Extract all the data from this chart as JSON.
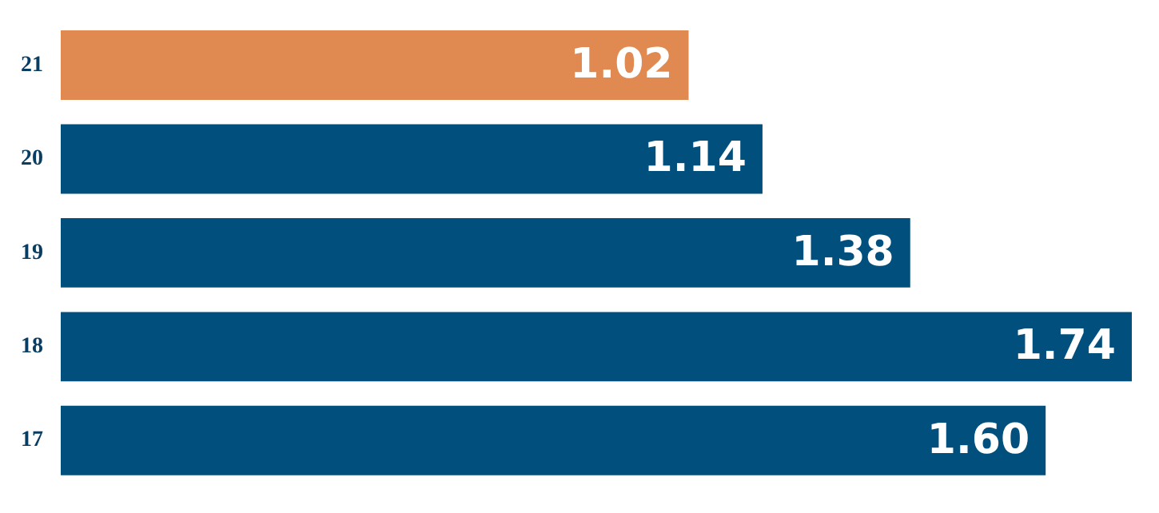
{
  "chart_data": {
    "type": "bar",
    "orientation": "horizontal",
    "categories": [
      "21",
      "20",
      "19",
      "18",
      "17"
    ],
    "values": [
      1.02,
      1.14,
      1.38,
      1.74,
      1.6
    ],
    "colors": [
      "#e08a52",
      "#004f7c",
      "#004f7c",
      "#004f7c",
      "#004f7c"
    ],
    "value_labels": [
      "1.02",
      "1.14",
      "1.38",
      "1.74",
      "1.60"
    ],
    "data_labels": true,
    "legend": false
  }
}
